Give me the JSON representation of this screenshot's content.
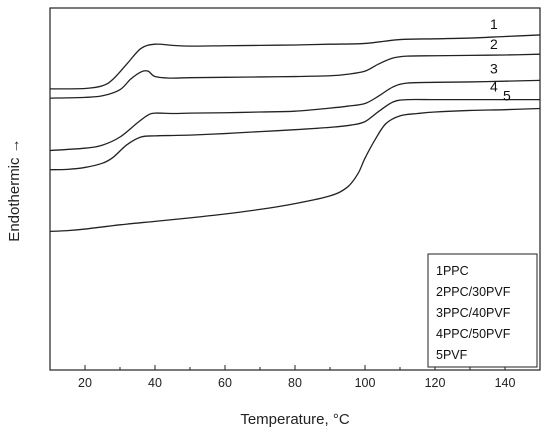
{
  "chart_data": {
    "type": "line",
    "xlabel": "Temperature, °C",
    "ylabel": "Endothermic →",
    "xlim": [
      10,
      150
    ],
    "xticks": [
      20,
      40,
      60,
      80,
      100,
      120,
      140
    ],
    "yticks_shown": false,
    "grid": false,
    "legend_position": "bottom-right",
    "legend_entries": [
      "1PPC",
      "2PPC/30PVF",
      "3PPC/40PVF",
      "4PPC/50PVF",
      "5PVF"
    ],
    "line_color": "#222222",
    "series": [
      {
        "name": "1",
        "x": [
          10,
          20,
          25,
          28,
          32,
          36,
          40,
          45,
          50,
          60,
          70,
          80,
          90,
          100,
          110,
          120,
          130,
          140,
          150
        ],
        "y": [
          7.3,
          7.31,
          7.38,
          7.55,
          7.95,
          8.35,
          8.46,
          8.43,
          8.41,
          8.42,
          8.43,
          8.44,
          8.46,
          8.48,
          8.58,
          8.6,
          8.62,
          8.66,
          8.7
        ]
      },
      {
        "name": "2",
        "x": [
          10,
          20,
          25,
          30,
          33,
          36,
          38,
          40,
          44,
          50,
          60,
          70,
          80,
          90,
          95,
          100,
          104,
          108,
          112,
          120,
          130,
          140,
          150
        ],
        "y": [
          7.06,
          7.08,
          7.12,
          7.28,
          7.55,
          7.74,
          7.76,
          7.62,
          7.58,
          7.59,
          7.6,
          7.61,
          7.62,
          7.64,
          7.68,
          7.76,
          7.95,
          8.1,
          8.15,
          8.16,
          8.17,
          8.18,
          8.2
        ]
      },
      {
        "name": "3",
        "x": [
          10,
          20,
          25,
          30,
          35,
          38,
          40,
          45,
          50,
          60,
          70,
          80,
          90,
          95,
          100,
          104,
          108,
          112,
          120,
          130,
          140,
          150
        ],
        "y": [
          5.7,
          5.76,
          5.84,
          6.05,
          6.42,
          6.62,
          6.67,
          6.66,
          6.67,
          6.68,
          6.7,
          6.72,
          6.8,
          6.85,
          6.92,
          7.12,
          7.35,
          7.45,
          7.47,
          7.48,
          7.5,
          7.52
        ]
      },
      {
        "name": "4",
        "x": [
          10,
          15,
          20,
          25,
          28,
          32,
          36,
          40,
          45,
          50,
          60,
          70,
          80,
          90,
          96,
          100,
          104,
          108,
          112,
          120,
          130,
          140,
          150
        ],
        "y": [
          5.2,
          5.21,
          5.26,
          5.37,
          5.52,
          5.85,
          6.05,
          6.08,
          6.09,
          6.1,
          6.14,
          6.19,
          6.24,
          6.3,
          6.36,
          6.45,
          6.72,
          6.96,
          7.02,
          7.02,
          7.02,
          7.02,
          7.02
        ]
      },
      {
        "name": "5",
        "x": [
          10,
          15,
          20,
          30,
          40,
          50,
          60,
          70,
          80,
          90,
          95,
          98,
          100,
          103,
          106,
          110,
          115,
          120,
          130,
          140,
          150
        ],
        "y": [
          3.6,
          3.62,
          3.66,
          3.77,
          3.86,
          3.95,
          4.05,
          4.17,
          4.32,
          4.52,
          4.75,
          5.1,
          5.5,
          6.0,
          6.4,
          6.6,
          6.66,
          6.7,
          6.74,
          6.76,
          6.79
        ]
      }
    ]
  }
}
